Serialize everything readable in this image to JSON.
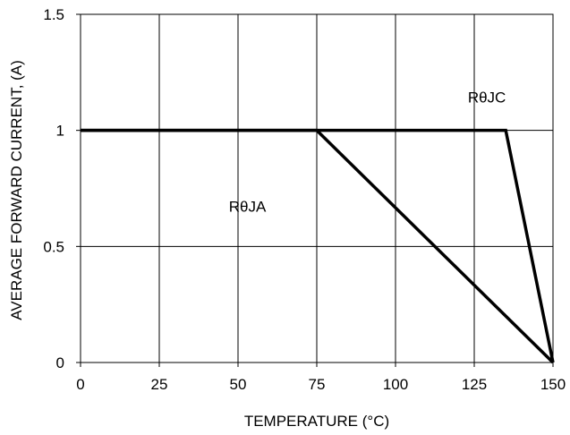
{
  "chart_data": {
    "type": "line",
    "xlabel": "TEMPERATURE (°C)",
    "ylabel": "AVERAGE FORWARD CURRENT, (A)",
    "xlim": [
      0,
      150
    ],
    "ylim": [
      0,
      1.5
    ],
    "xticks": [
      0,
      25,
      50,
      75,
      100,
      125,
      150
    ],
    "yticks": [
      0,
      0.5,
      1,
      1.5
    ],
    "xtick_labels": [
      "0",
      "25",
      "50",
      "75",
      "100",
      "125",
      "150"
    ],
    "ytick_labels": [
      "0",
      "0.5",
      "1",
      "1.5"
    ],
    "grid": true,
    "series": [
      {
        "name": "RθJC",
        "x": [
          0,
          135,
          150
        ],
        "y": [
          1,
          1,
          0
        ]
      },
      {
        "name": "RθJA",
        "x": [
          0,
          75,
          150
        ],
        "y": [
          1,
          1,
          0
        ]
      }
    ],
    "annotations": [
      {
        "text": "RθJC",
        "x": 129,
        "y": 1.12
      },
      {
        "text": "RθJA",
        "x": 53,
        "y": 0.65
      }
    ]
  }
}
